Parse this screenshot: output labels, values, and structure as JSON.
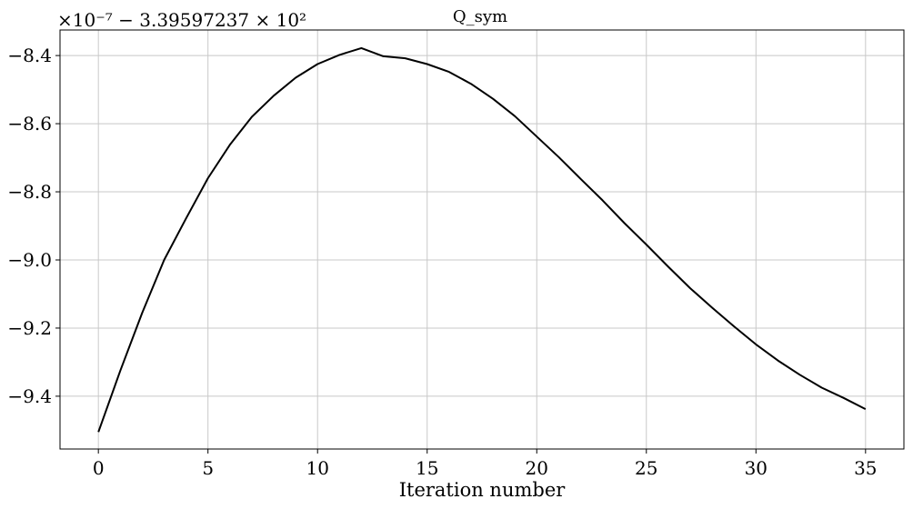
{
  "chart_data": {
    "type": "line",
    "title": "Q_sym",
    "xlabel": "Iteration number",
    "ylabel": "",
    "offset_label": "×10⁻⁷ − 3.39597237 × 10²",
    "xlim": [
      -1.75,
      36.75
    ],
    "ylim": [
      -9.555,
      -8.325
    ],
    "xticks": [
      0,
      5,
      10,
      15,
      20,
      25,
      30,
      35
    ],
    "yticks": [
      -8.4,
      -8.6,
      -8.8,
      -9.0,
      -9.2,
      -9.4
    ],
    "ytick_labels": [
      "−8.4",
      "−8.6",
      "−8.8",
      "−9.0",
      "−9.2",
      "−9.4"
    ],
    "grid": true,
    "series": [
      {
        "color": "#000000",
        "x": [
          0,
          1,
          2,
          3,
          4,
          5,
          6,
          7,
          8,
          9,
          10,
          11,
          12,
          13,
          14,
          15,
          16,
          17,
          18,
          19,
          20,
          21,
          22,
          23,
          24,
          25,
          26,
          27,
          28,
          29,
          30,
          31,
          32,
          33,
          34,
          35
        ],
        "values": [
          -9.505,
          -9.325,
          -9.155,
          -9.0,
          -8.878,
          -8.76,
          -8.662,
          -8.58,
          -8.518,
          -8.465,
          -8.425,
          -8.398,
          -8.378,
          -8.402,
          -8.408,
          -8.425,
          -8.448,
          -8.483,
          -8.527,
          -8.578,
          -8.638,
          -8.698,
          -8.762,
          -8.825,
          -8.892,
          -8.955,
          -9.02,
          -9.083,
          -9.14,
          -9.195,
          -9.248,
          -9.295,
          -9.337,
          -9.375,
          -9.405,
          -9.438
        ]
      }
    ]
  }
}
